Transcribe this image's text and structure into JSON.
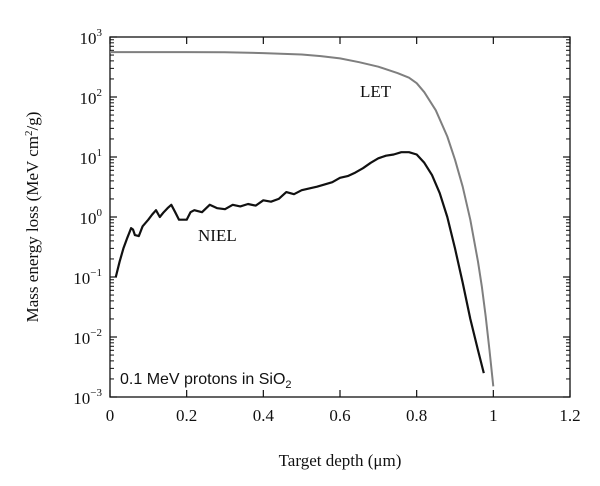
{
  "chart_data": {
    "type": "line",
    "xlabel": "Target depth (μm)",
    "ylabel": "Mass energy loss (MeV cm²/g)",
    "ylabel_parts": {
      "before": "Mass energy loss (MeV cm",
      "sup": "2",
      "after": "/g)"
    },
    "xlim": [
      0,
      1.2
    ],
    "ylim": [
      0.001,
      1000
    ],
    "yscale": "log",
    "grid": false,
    "x_ticks": [
      "0",
      "0.2",
      "0.4",
      "0.6",
      "0.8",
      "1",
      "1.2"
    ],
    "y_ticks": [
      {
        "base": "10",
        "exp": "3",
        "value": 1000
      },
      {
        "base": "10",
        "exp": "2",
        "value": 100
      },
      {
        "base": "10",
        "exp": "1",
        "value": 10
      },
      {
        "base": "10",
        "exp": "0",
        "value": 1
      },
      {
        "base": "10",
        "exp": "−1",
        "value": 0.1
      },
      {
        "base": "10",
        "exp": "−2",
        "value": 0.01
      },
      {
        "base": "10",
        "exp": "−3",
        "value": 0.001
      }
    ],
    "annotation": {
      "before": "0.1 MeV protons in SiO",
      "sub": "2"
    },
    "series": [
      {
        "name": "LET",
        "color": "#7f7f7f",
        "x": [
          0.0,
          0.1,
          0.2,
          0.3,
          0.4,
          0.5,
          0.55,
          0.6,
          0.65,
          0.7,
          0.75,
          0.78,
          0.8,
          0.82,
          0.85,
          0.88,
          0.9,
          0.92,
          0.94,
          0.96,
          0.97,
          0.98,
          0.99,
          1.0
        ],
        "y": [
          560,
          560,
          560,
          555,
          540,
          510,
          480,
          440,
          380,
          320,
          250,
          210,
          170,
          120,
          60,
          22,
          9,
          3.2,
          0.9,
          0.18,
          0.07,
          0.022,
          0.006,
          0.0015
        ]
      },
      {
        "name": "NIEL",
        "color": "#111111",
        "x": [
          0.015,
          0.025,
          0.035,
          0.045,
          0.055,
          0.06,
          0.065,
          0.075,
          0.085,
          0.1,
          0.11,
          0.12,
          0.13,
          0.14,
          0.15,
          0.16,
          0.17,
          0.18,
          0.2,
          0.21,
          0.22,
          0.24,
          0.26,
          0.28,
          0.3,
          0.32,
          0.34,
          0.36,
          0.38,
          0.4,
          0.42,
          0.44,
          0.46,
          0.48,
          0.5,
          0.52,
          0.54,
          0.56,
          0.58,
          0.6,
          0.62,
          0.64,
          0.66,
          0.68,
          0.7,
          0.72,
          0.74,
          0.76,
          0.78,
          0.8,
          0.82,
          0.84,
          0.86,
          0.88,
          0.9,
          0.92,
          0.94,
          0.96,
          0.975
        ],
        "y": [
          0.1,
          0.18,
          0.3,
          0.45,
          0.65,
          0.62,
          0.5,
          0.48,
          0.7,
          0.9,
          1.1,
          1.3,
          1.0,
          1.2,
          1.4,
          1.6,
          1.2,
          0.9,
          0.9,
          1.2,
          1.3,
          1.2,
          1.6,
          1.4,
          1.35,
          1.6,
          1.5,
          1.65,
          1.55,
          1.9,
          1.8,
          2.0,
          2.6,
          2.4,
          2.8,
          3.0,
          3.2,
          3.5,
          3.8,
          4.5,
          4.8,
          5.5,
          6.5,
          8.0,
          9.5,
          10.5,
          11.0,
          12.0,
          12.0,
          11.0,
          8.0,
          5.0,
          2.5,
          1.0,
          0.3,
          0.08,
          0.02,
          0.006,
          0.0025
        ]
      }
    ]
  }
}
